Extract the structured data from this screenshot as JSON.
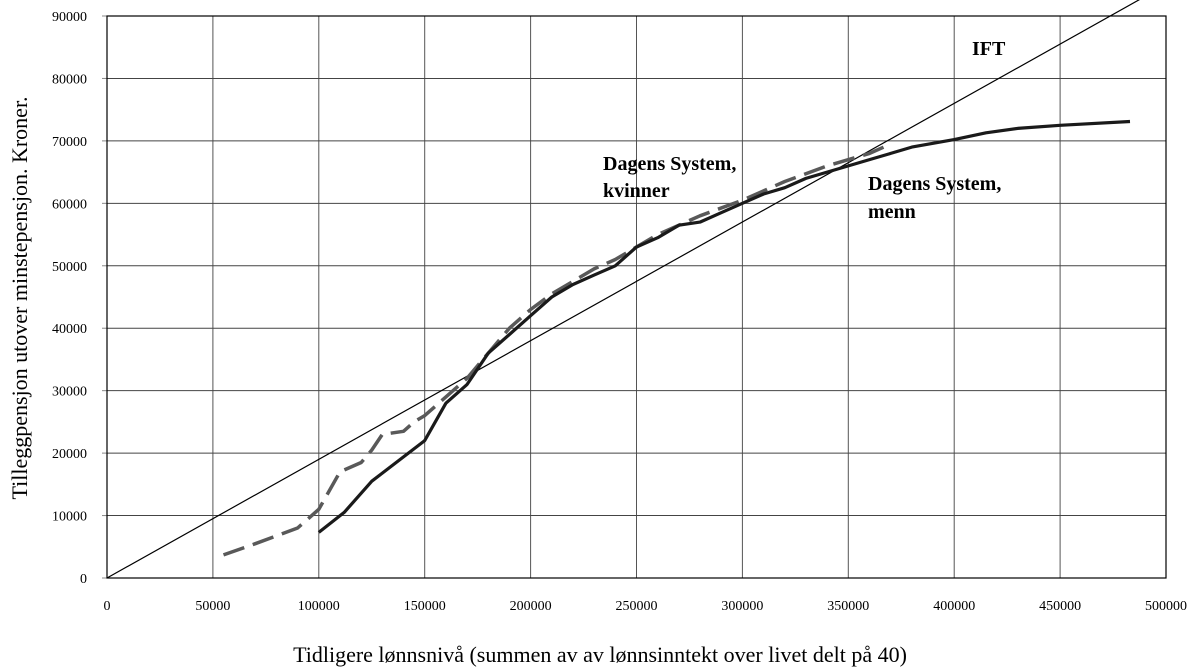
{
  "chart_data": {
    "type": "line",
    "title": "",
    "xlabel": "Tidligere lønnsnivå (summen av  av lønnsinntekt over livet delt på 40)",
    "ylabel": "Tilleggpensjon utover minstepensjon. Kroner.",
    "xlim": [
      0,
      500000
    ],
    "ylim": [
      0,
      90000
    ],
    "xticks": [
      0,
      50000,
      100000,
      150000,
      200000,
      250000,
      300000,
      350000,
      400000,
      450000,
      500000
    ],
    "yticks": [
      0,
      10000,
      20000,
      30000,
      40000,
      50000,
      60000,
      70000,
      80000,
      90000
    ],
    "grid": true,
    "series": [
      {
        "name": "IFT",
        "label_lines": [
          "IFT"
        ],
        "style": "thin-solid",
        "color": "#000000",
        "x": [
          0,
          490000
        ],
        "y": [
          0,
          93100
        ]
      },
      {
        "name": "Dagens System, kvinner",
        "label_lines": [
          "Dagens System,",
          "kvinner"
        ],
        "style": "dashed",
        "color": "#595959",
        "x": [
          55000,
          70000,
          90000,
          100000,
          110000,
          120000,
          125000,
          130000,
          140000,
          145000,
          150000,
          160000,
          170000,
          180000,
          190000,
          200000,
          210000,
          220000,
          230000,
          240000,
          250000,
          260000,
          270000,
          280000,
          300000,
          320000,
          340000,
          360000,
          370000
        ],
        "y": [
          3700,
          5500,
          8000,
          11000,
          17000,
          18500,
          20500,
          23000,
          23500,
          25000,
          26000,
          29000,
          32000,
          36000,
          40000,
          43000,
          45500,
          47500,
          49500,
          51000,
          53000,
          55000,
          56500,
          58000,
          60500,
          63500,
          66000,
          68000,
          69500
        ]
      },
      {
        "name": "Dagens System, menn",
        "label_lines": [
          "Dagens System,",
          "menn"
        ],
        "style": "thick-solid",
        "color": "#1a1a1a",
        "x": [
          100000,
          112000,
          125000,
          150000,
          160000,
          170000,
          180000,
          190000,
          200000,
          210000,
          220000,
          230000,
          240000,
          250000,
          260000,
          270000,
          280000,
          290000,
          300000,
          310000,
          320000,
          330000,
          340000,
          350000,
          360000,
          370000,
          380000,
          400000,
          415000,
          430000,
          450000,
          483000
        ],
        "y": [
          7300,
          10500,
          15500,
          22000,
          28000,
          31000,
          36000,
          39000,
          42000,
          45000,
          47000,
          48500,
          50000,
          53000,
          54500,
          56500,
          57000,
          58500,
          60000,
          61500,
          62500,
          64000,
          65000,
          66000,
          67000,
          68000,
          69000,
          70200,
          71300,
          72000,
          72500,
          73100
        ]
      }
    ]
  }
}
